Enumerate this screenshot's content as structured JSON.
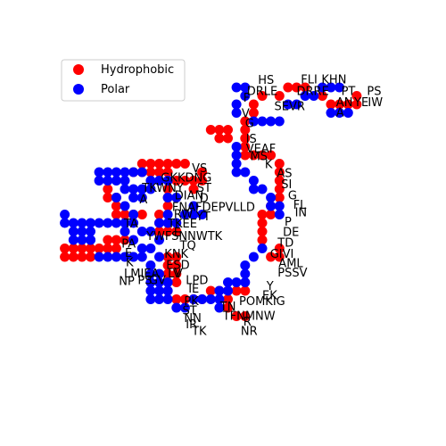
{
  "chart_data": {
    "type": "scatter",
    "xlim": [
      0,
      40
    ],
    "ylim": [
      0,
      40
    ],
    "axes_visible": false,
    "legend": {
      "placement": "top-left",
      "entries": [
        {
          "label": "Hydrophobic",
          "color": "#ff0000"
        },
        {
          "label": "Polar",
          "color": "#0000ff"
        }
      ]
    },
    "series": [
      {
        "name": "Hydrophobic",
        "color": "#ff0000",
        "points": [
          [
            24,
            35
          ],
          [
            23,
            34
          ],
          [
            23,
            33
          ],
          [
            22,
            32
          ],
          [
            22,
            31
          ],
          [
            20,
            31
          ],
          [
            19,
            31
          ],
          [
            18,
            31
          ],
          [
            19,
            30
          ],
          [
            20,
            30
          ],
          [
            22,
            30
          ],
          [
            22,
            29
          ],
          [
            22,
            28
          ],
          [
            23,
            28
          ],
          [
            24,
            28
          ],
          [
            25,
            28
          ],
          [
            26,
            27
          ],
          [
            26,
            26
          ],
          [
            26,
            25
          ],
          [
            26,
            24
          ],
          [
            26,
            23
          ],
          [
            25,
            22
          ],
          [
            25,
            21
          ],
          [
            24,
            21
          ],
          [
            24,
            20
          ],
          [
            24,
            19
          ],
          [
            24,
            18
          ],
          [
            26,
            17
          ],
          [
            26,
            16
          ],
          [
            25,
            16
          ],
          [
            15,
            27
          ],
          [
            14,
            27
          ],
          [
            13,
            27
          ],
          [
            12,
            27
          ],
          [
            11,
            27
          ],
          [
            10,
            27
          ],
          [
            9,
            26
          ],
          [
            10,
            26
          ],
          [
            11,
            26
          ],
          [
            12,
            26
          ],
          [
            13,
            26
          ],
          [
            14,
            25
          ],
          [
            15,
            25
          ],
          [
            16,
            25
          ],
          [
            17,
            26
          ],
          [
            17,
            25
          ],
          [
            16,
            24
          ],
          [
            13,
            24
          ],
          [
            13,
            23
          ],
          [
            13,
            22
          ],
          [
            12,
            21
          ],
          [
            12,
            20
          ],
          [
            12,
            19
          ],
          [
            13,
            19
          ],
          [
            14,
            19
          ],
          [
            10,
            21
          ],
          [
            9,
            21
          ],
          [
            8,
            21
          ],
          [
            7,
            21
          ],
          [
            7,
            22
          ],
          [
            7,
            23
          ],
          [
            6,
            23
          ],
          [
            6,
            24
          ],
          [
            8,
            18
          ],
          [
            7,
            18
          ],
          [
            6,
            17
          ],
          [
            6,
            18
          ],
          [
            7,
            17
          ],
          [
            5,
            17
          ],
          [
            4,
            17
          ],
          [
            3,
            17
          ],
          [
            2,
            17
          ],
          [
            1,
            17
          ],
          [
            1,
            16
          ],
          [
            2,
            16
          ],
          [
            3,
            16
          ],
          [
            4,
            16
          ],
          [
            13,
            16
          ],
          [
            14,
            16
          ],
          [
            14,
            15
          ],
          [
            13,
            15
          ],
          [
            14,
            14
          ],
          [
            13,
            14
          ],
          [
            14,
            13
          ],
          [
            13,
            12
          ],
          [
            14,
            11
          ],
          [
            15,
            11
          ],
          [
            16,
            11
          ],
          [
            17,
            11
          ],
          [
            18,
            12
          ],
          [
            19,
            12
          ],
          [
            20,
            12
          ],
          [
            21,
            12
          ],
          [
            22,
            12
          ],
          [
            20,
            11
          ],
          [
            20,
            10
          ],
          [
            21,
            9
          ],
          [
            22,
            9
          ],
          [
            26,
            35
          ],
          [
            27,
            36
          ],
          [
            28,
            36
          ],
          [
            29,
            36
          ],
          [
            31,
            35
          ],
          [
            32,
            34
          ],
          [
            33,
            34
          ],
          [
            34,
            34
          ],
          [
            35,
            34
          ],
          [
            35,
            35
          ]
        ]
      },
      {
        "name": "Polar",
        "color": "#0000ff",
        "points": [
          [
            21,
            36
          ],
          [
            22,
            36
          ],
          [
            22,
            35
          ],
          [
            21,
            34
          ],
          [
            21,
            33
          ],
          [
            23,
            32
          ],
          [
            24,
            32
          ],
          [
            25,
            32
          ],
          [
            26,
            32
          ],
          [
            27,
            34
          ],
          [
            28,
            34
          ],
          [
            29,
            35
          ],
          [
            30,
            35
          ],
          [
            31,
            36
          ],
          [
            32,
            36
          ],
          [
            33,
            36
          ],
          [
            32,
            33
          ],
          [
            33,
            33
          ],
          [
            34,
            33
          ],
          [
            21,
            29
          ],
          [
            21,
            28
          ],
          [
            21,
            27
          ],
          [
            21,
            26
          ],
          [
            22,
            26
          ],
          [
            23,
            25
          ],
          [
            23,
            24
          ],
          [
            24,
            24
          ],
          [
            25,
            23
          ],
          [
            25,
            22
          ],
          [
            26,
            22
          ],
          [
            26,
            21
          ],
          [
            24,
            17
          ],
          [
            23,
            16
          ],
          [
            22,
            15
          ],
          [
            22,
            14
          ],
          [
            22,
            13
          ],
          [
            21,
            13
          ],
          [
            20,
            13
          ],
          [
            20,
            12
          ],
          [
            19,
            12
          ],
          [
            19,
            11
          ],
          [
            19,
            10
          ],
          [
            18,
            11
          ],
          [
            17,
            11
          ],
          [
            16,
            11
          ],
          [
            15,
            10
          ],
          [
            14,
            10
          ],
          [
            13,
            11
          ],
          [
            12,
            11
          ],
          [
            11,
            11
          ],
          [
            11,
            12
          ],
          [
            11,
            13
          ],
          [
            12,
            13
          ],
          [
            12,
            14
          ],
          [
            13,
            13
          ],
          [
            13,
            12
          ],
          [
            12,
            12
          ],
          [
            11,
            14
          ],
          [
            11,
            15
          ],
          [
            12,
            16
          ],
          [
            11,
            17
          ],
          [
            10,
            17
          ],
          [
            9,
            16
          ],
          [
            10,
            16
          ],
          [
            9,
            18
          ],
          [
            8,
            19
          ],
          [
            9,
            20
          ],
          [
            8,
            20
          ],
          [
            9,
            21
          ],
          [
            8,
            22
          ],
          [
            7,
            23
          ],
          [
            8,
            24
          ],
          [
            9,
            23
          ],
          [
            10,
            23
          ],
          [
            11,
            24
          ],
          [
            11,
            25
          ],
          [
            12,
            25
          ],
          [
            13,
            25
          ],
          [
            10,
            24
          ],
          [
            9,
            24
          ],
          [
            8,
            25
          ],
          [
            7,
            25
          ],
          [
            6,
            25
          ],
          [
            5,
            25
          ],
          [
            5,
            26
          ],
          [
            6,
            26
          ],
          [
            7,
            26
          ],
          [
            8,
            26
          ],
          [
            9,
            26
          ],
          [
            10,
            26
          ],
          [
            12,
            20
          ],
          [
            13,
            20
          ],
          [
            14,
            20
          ],
          [
            12,
            18
          ],
          [
            11,
            19
          ],
          [
            10,
            19
          ],
          [
            7,
            20
          ],
          [
            6,
            20
          ],
          [
            5,
            20
          ],
          [
            4,
            20
          ],
          [
            4,
            19
          ],
          [
            3,
            18
          ],
          [
            3,
            19
          ],
          [
            4,
            18
          ],
          [
            15,
            21
          ],
          [
            16,
            21
          ],
          [
            17,
            21
          ],
          [
            16,
            22
          ],
          [
            14,
            23
          ],
          [
            13,
            23
          ],
          [
            13,
            21
          ],
          [
            1,
            21
          ],
          [
            1,
            20
          ],
          [
            2,
            20
          ],
          [
            3,
            20
          ],
          [
            2,
            19
          ],
          [
            2,
            18
          ],
          [
            4,
            18
          ],
          [
            5,
            16
          ],
          [
            6,
            16
          ],
          [
            7,
            16
          ],
          [
            8,
            16
          ],
          [
            9,
            16
          ]
        ]
      }
    ],
    "labels": [
      {
        "t": "HS",
        "x": 23.5,
        "y": 36.4
      },
      {
        "t": "DRLE",
        "x": 22.2,
        "y": 35.1
      },
      {
        "t": "F",
        "x": 21.8,
        "y": 34.3
      },
      {
        "t": "V",
        "x": 21.6,
        "y": 32.5
      },
      {
        "t": "G",
        "x": 22.0,
        "y": 31.3
      },
      {
        "t": "SEVR",
        "x": 25.4,
        "y": 33.3
      },
      {
        "t": "FLI",
        "x": 28.5,
        "y": 36.5
      },
      {
        "t": "KHN",
        "x": 30.9,
        "y": 36.5
      },
      {
        "t": "DRRE",
        "x": 28.0,
        "y": 35.1
      },
      {
        "t": "PT",
        "x": 33.2,
        "y": 35.1
      },
      {
        "t": "PS",
        "x": 36.2,
        "y": 35.1
      },
      {
        "t": "AN",
        "x": 32.6,
        "y": 33.8
      },
      {
        "t": "YE",
        "x": 34.7,
        "y": 33.8
      },
      {
        "t": "IW",
        "x": 36.3,
        "y": 33.8
      },
      {
        "t": "A",
        "x": 32.6,
        "y": 32.6
      },
      {
        "t": "IS",
        "x": 22.1,
        "y": 29.5
      },
      {
        "t": "VEAF",
        "x": 22.1,
        "y": 28.3
      },
      {
        "t": "MS",
        "x": 22.6,
        "y": 27.4
      },
      {
        "t": "K",
        "x": 24.3,
        "y": 26.5
      },
      {
        "t": "AS",
        "x": 25.7,
        "y": 25.4
      },
      {
        "t": "SI",
        "x": 26.2,
        "y": 24.1
      },
      {
        "t": "G",
        "x": 27.0,
        "y": 22.8
      },
      {
        "t": "FL",
        "x": 27.6,
        "y": 21.7
      },
      {
        "t": "IN",
        "x": 27.8,
        "y": 20.8
      },
      {
        "t": "P",
        "x": 26.6,
        "y": 19.7
      },
      {
        "t": "DE",
        "x": 26.4,
        "y": 18.5
      },
      {
        "t": "TD",
        "x": 25.8,
        "y": 17.2
      },
      {
        "t": "GIVI",
        "x": 24.9,
        "y": 15.9
      },
      {
        "t": "AML",
        "x": 25.9,
        "y": 14.8
      },
      {
        "t": "PSSV",
        "x": 25.8,
        "y": 13.7
      },
      {
        "t": "Y",
        "x": 24.5,
        "y": 12.1
      },
      {
        "t": "EK",
        "x": 24.0,
        "y": 11.0
      },
      {
        "t": "POMKIG",
        "x": 21.3,
        "y": 10.3
      },
      {
        "t": "TN",
        "x": 19.1,
        "y": 9.7
      },
      {
        "t": "TFNMNW",
        "x": 19.4,
        "y": 8.6
      },
      {
        "t": "R",
        "x": 21.8,
        "y": 7.9
      },
      {
        "t": "NR",
        "x": 21.5,
        "y": 6.8
      },
      {
        "t": "VS",
        "x": 15.8,
        "y": 26.0
      },
      {
        "t": "GKKDNG",
        "x": 12.2,
        "y": 24.9
      },
      {
        "t": "TKWNY",
        "x": 10.0,
        "y": 23.7
      },
      {
        "t": "ST",
        "x": 16.4,
        "y": 23.7
      },
      {
        "t": "DIAN",
        "x": 13.8,
        "y": 22.8
      },
      {
        "t": "D",
        "x": 16.7,
        "y": 22.5
      },
      {
        "t": "A",
        "x": 9.7,
        "y": 22.3
      },
      {
        "t": "FNAFDEPVLLD",
        "x": 13.5,
        "y": 21.4
      },
      {
        "t": "RW",
        "x": 13.7,
        "y": 20.6
      },
      {
        "t": "YT",
        "x": 16.3,
        "y": 20.3
      },
      {
        "t": "TKEE",
        "x": 13.0,
        "y": 19.5
      },
      {
        "t": "TA",
        "x": 7.9,
        "y": 19.5
      },
      {
        "t": "E",
        "x": 13.7,
        "y": 18.4
      },
      {
        "t": "YWFSNNWTK",
        "x": 10.5,
        "y": 18.0
      },
      {
        "t": "PA",
        "x": 7.6,
        "y": 17.1
      },
      {
        "t": "TQ",
        "x": 14.4,
        "y": 16.9
      },
      {
        "t": "E",
        "x": 8.0,
        "y": 16.0
      },
      {
        "t": "K",
        "x": 8.1,
        "y": 14.9
      },
      {
        "t": "KNK",
        "x": 12.6,
        "y": 15.9
      },
      {
        "t": "ESD",
        "x": 12.8,
        "y": 14.6
      },
      {
        "t": "LMIEA",
        "x": 7.9,
        "y": 13.6
      },
      {
        "t": "LV",
        "x": 13.0,
        "y": 13.6
      },
      {
        "t": "V",
        "x": 13.8,
        "y": 13.6
      },
      {
        "t": "NP",
        "x": 7.3,
        "y": 12.7
      },
      {
        "t": "PS",
        "x": 9.5,
        "y": 12.8
      },
      {
        "t": "GV",
        "x": 10.8,
        "y": 12.8
      },
      {
        "t": "LPD",
        "x": 15.1,
        "y": 12.8
      },
      {
        "t": "IE",
        "x": 15.4,
        "y": 11.8
      },
      {
        "t": "PK",
        "x": 14.9,
        "y": 10.3
      },
      {
        "t": "ST",
        "x": 14.7,
        "y": 9.2
      },
      {
        "t": "NN",
        "x": 14.9,
        "y": 8.3
      },
      {
        "t": "IR",
        "x": 15.1,
        "y": 7.6
      },
      {
        "t": "TK",
        "x": 15.8,
        "y": 6.8
      }
    ]
  }
}
